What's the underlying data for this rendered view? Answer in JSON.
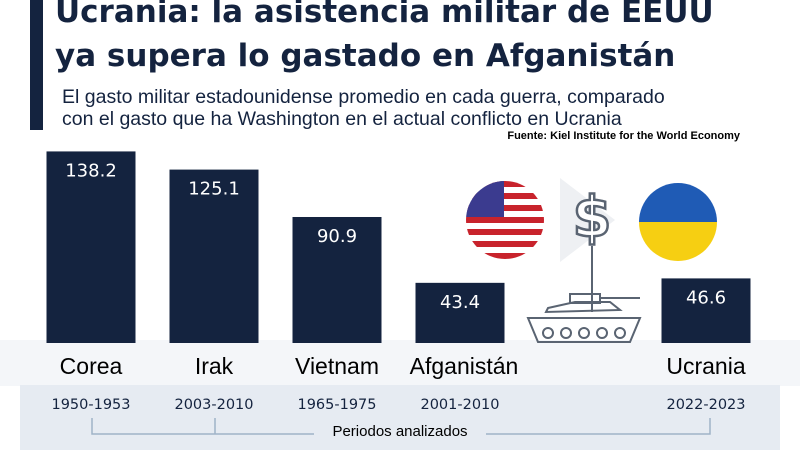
{
  "header": {
    "title_line1": "Ucrania: la asistencia militar de EEUU",
    "title_line2": "ya supera lo gastado en Afganistán",
    "subtitle_line1": "El gasto militar estadounidense promedio en cada guerra, comparado",
    "subtitle_line2": "con el gasto que ha Washington en el actual conflicto en Ucrania",
    "source": "Fuente: Kiel Institute for the World Economy"
  },
  "footer": {
    "periods_label": "Periodos analizados"
  },
  "icons": [
    "us-flag-icon",
    "dollar-sign-icon",
    "ukraine-flag-icon",
    "tank-icon"
  ],
  "colors": {
    "bar": "#14233f",
    "band_light": "#f4f6f9",
    "band_dark": "#e6ebf2"
  },
  "chart_data": {
    "type": "bar",
    "categories": [
      "Corea",
      "Irak",
      "Vietnam",
      "Afganistán",
      "Ucrania"
    ],
    "periods": [
      "1950-1953",
      "2003-2010",
      "1965-1975",
      "2001-2010",
      "2022-2023"
    ],
    "values": [
      138.2,
      125.1,
      90.9,
      43.4,
      46.6
    ],
    "value_labels": [
      "138.2",
      "125.1",
      "90.9",
      "43.4",
      "46.6"
    ],
    "ylim": [
      0,
      145
    ],
    "grid": false,
    "legend": "none"
  }
}
